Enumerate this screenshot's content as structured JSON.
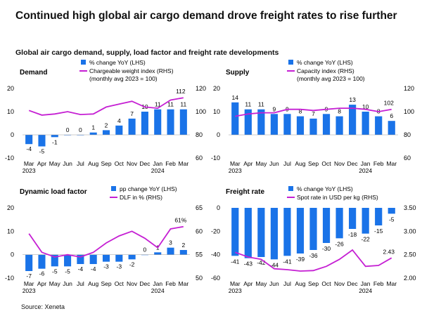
{
  "title": "Continued high global air cargo demand drove freight rates to rise further",
  "subtitle": "Global air cargo demand, supply, load factor and freight rate developments",
  "source": "Source: Xeneta",
  "colors": {
    "bar": "#1a73e8",
    "line": "#c51fd3"
  },
  "months": [
    "Mar",
    "Apr",
    "May",
    "Jun",
    "Jul",
    "Aug",
    "Sep",
    "Oct",
    "Nov",
    "Dec",
    "Jan",
    "Feb",
    "Mar"
  ],
  "year_labels": [
    "2023",
    "2024"
  ],
  "chart_data": [
    {
      "type": "bar",
      "title": "Demand",
      "series": [
        {
          "name": "% change YoY (LHS)",
          "axis": "left",
          "values": [
            -4,
            -5,
            -1,
            0,
            0,
            1,
            2,
            4,
            7,
            10,
            11,
            11,
            11
          ]
        },
        {
          "name": "Chargeable weight index (RHS) (monthly avg 2023 = 100)",
          "axis": "right",
          "type": "line",
          "values": [
            101,
            97,
            98,
            100,
            97.5,
            98,
            104,
            106.5,
            109,
            104,
            103,
            110,
            112
          ]
        }
      ],
      "bar_labels": [
        "-4",
        "-5",
        "-1",
        "0",
        "0",
        "1",
        "2",
        "4",
        "7",
        "10",
        "11",
        "11",
        "11"
      ],
      "line_label": "112",
      "ylim_left": [
        -10,
        20
      ],
      "yticks_left": [
        -10,
        0,
        10,
        20
      ],
      "ylim_right": [
        60,
        120
      ],
      "yticks_right": [
        60,
        80,
        100,
        120
      ],
      "legend": [
        "% change YoY (LHS)",
        "Chargeable weight index (RHS)",
        "(monthly avg 2023 = 100)"
      ]
    },
    {
      "type": "bar",
      "title": "Supply",
      "series": [
        {
          "name": "% change YoY (LHS)",
          "axis": "left",
          "values": [
            14,
            11,
            11,
            9,
            9,
            8,
            7,
            9,
            8,
            13,
            10,
            8,
            6
          ]
        },
        {
          "name": "Capacity index (RHS) (monthly avg 2023 = 100)",
          "axis": "right",
          "type": "line",
          "values": [
            96,
            98,
            99,
            99,
            102,
            102,
            101,
            102,
            103,
            103,
            102,
            100,
            102
          ]
        }
      ],
      "bar_labels": [
        "14",
        "11",
        "11",
        "9",
        "9",
        "8",
        "7",
        "9",
        "8",
        "13",
        "10",
        "8",
        "6"
      ],
      "line_label": "102",
      "ylim_left": [
        -10,
        20
      ],
      "yticks_left": [
        -10,
        0,
        10,
        20
      ],
      "ylim_right": [
        60,
        120
      ],
      "yticks_right": [
        60,
        80,
        100,
        120
      ],
      "legend": [
        "% change YoY (LHS)",
        "Capacity index (RHS)",
        "(monthly avg 2023 = 100)"
      ]
    },
    {
      "type": "bar",
      "title": "Dynamic load factor",
      "series": [
        {
          "name": "pp change YoY (LHS)",
          "axis": "left",
          "values": [
            -7,
            -6,
            -5,
            -5,
            -4,
            -4,
            -3,
            -3,
            -2,
            0,
            1,
            3,
            2
          ]
        },
        {
          "name": "DLF in % (RHS)",
          "axis": "right",
          "type": "line",
          "values": [
            59.5,
            55.5,
            54.5,
            55,
            54.5,
            55.5,
            57.5,
            59,
            60,
            58.5,
            56.5,
            60.5,
            61
          ]
        }
      ],
      "bar_labels": [
        "-7",
        "-6",
        "-5",
        "-5",
        "-4",
        "-4",
        "-3",
        "-3",
        "-2",
        "0",
        "1",
        "3",
        "2"
      ],
      "line_label": "61%",
      "ylim_left": [
        -10,
        20
      ],
      "yticks_left": [
        -10,
        0,
        10,
        20
      ],
      "ylim_right": [
        50,
        65
      ],
      "yticks_right": [
        50,
        55,
        60,
        65
      ],
      "legend": [
        "pp change YoY (LHS)",
        "DLF in % (RHS)"
      ]
    },
    {
      "type": "bar",
      "title": "Freight rate",
      "series": [
        {
          "name": "% change YoY (LHS)",
          "axis": "left",
          "values": [
            -41,
            -43,
            -42,
            -44,
            -41,
            -39,
            -36,
            -30,
            -26,
            -18,
            -22,
            -15,
            -5
          ]
        },
        {
          "name": "Spot rate in USD per kg (RHS)",
          "axis": "right",
          "type": "line",
          "values": [
            2.55,
            2.45,
            2.4,
            2.2,
            2.18,
            2.15,
            2.16,
            2.25,
            2.4,
            2.6,
            2.25,
            2.27,
            2.43
          ]
        }
      ],
      "bar_labels": [
        "-41",
        "-43",
        "-42",
        "-44",
        "-41",
        "-39",
        "-36",
        "-30",
        "-26",
        "-18",
        "-22",
        "-15",
        "-5"
      ],
      "line_label": "2.43",
      "ylim_left": [
        -60,
        0
      ],
      "yticks_left": [
        -60,
        -40,
        -20,
        0
      ],
      "ylim_right": [
        2.0,
        3.5
      ],
      "yticks_right": [
        "2.00",
        "2.50",
        "3.00",
        "3.50"
      ],
      "legend": [
        "% change YoY (LHS)",
        "Spot rate in USD per kg (RHS)"
      ]
    }
  ]
}
